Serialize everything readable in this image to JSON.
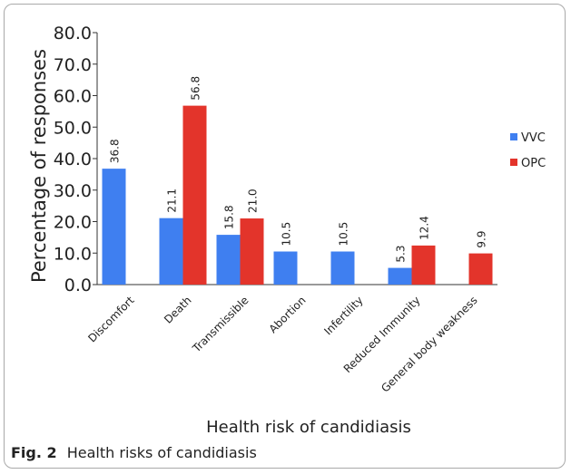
{
  "caption": {
    "label": "Fig. 2",
    "text": "Health risks of candidiasis"
  },
  "chart_data": {
    "type": "bar",
    "title": "",
    "xlabel": "Health risk of candidiasis",
    "ylabel": "Percentage of responses",
    "ylim": [
      0,
      80
    ],
    "yticks": [
      "0.0",
      "10.0",
      "20.0",
      "30.0",
      "40.0",
      "50.0",
      "60.0",
      "70.0",
      "80.0"
    ],
    "grid": false,
    "legend_position": "right",
    "categories": [
      "Discomfort",
      "Death",
      "Transmissible",
      "Abortion",
      "Infertility",
      "Reduced Immunity",
      "General body weakness"
    ],
    "series": [
      {
        "name": "VVC",
        "color": "#3f7ff0",
        "values": [
          36.8,
          21.1,
          15.8,
          10.5,
          10.5,
          5.3,
          null
        ],
        "labels": [
          "36.8",
          "21.1",
          "15.8",
          "10.5",
          "10.5",
          "5.3",
          ""
        ]
      },
      {
        "name": "OPC",
        "color": "#e3342b",
        "values": [
          null,
          56.8,
          21.0,
          null,
          null,
          12.4,
          9.9
        ],
        "labels": [
          "",
          "56.8",
          "21.0",
          "",
          "",
          "12.4",
          "9.9"
        ]
      }
    ]
  }
}
